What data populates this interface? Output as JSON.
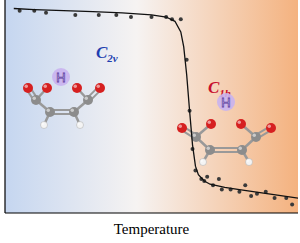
{
  "chart_data": {
    "type": "scatter",
    "x_label": "Temperature",
    "xlim": [
      0,
      100
    ],
    "ylim": [
      0,
      100
    ],
    "tick_labels": false,
    "grid": false,
    "annotations": [
      {
        "text": "C2v",
        "color": "#1f3fb0"
      },
      {
        "text": "C1h",
        "color": "#c8102e"
      },
      {
        "text": "H"
      },
      {
        "text": "H"
      }
    ],
    "series": [
      {
        "type": "scatter",
        "color": "#3a3a3a",
        "marker": "circle",
        "x": [
          5,
          10,
          14,
          24,
          32,
          38,
          43,
          50,
          55,
          57,
          60,
          62,
          63,
          64,
          65,
          67,
          68,
          69,
          71,
          73,
          74,
          77,
          80,
          82,
          84,
          86,
          89,
          92,
          96,
          98
        ],
        "values": [
          95,
          95,
          94,
          93,
          93,
          93,
          92,
          92,
          92,
          91,
          91,
          72,
          48,
          30,
          20,
          16,
          15,
          17,
          13,
          16,
          11,
          11,
          10,
          13,
          8,
          9,
          10,
          7,
          7,
          4
        ]
      },
      {
        "type": "line",
        "color": "#111111",
        "line_style": "solid",
        "x": [
          3,
          10,
          20,
          30,
          40,
          50,
          55,
          58,
          60,
          61,
          62,
          63,
          64,
          65,
          66,
          68,
          70,
          75,
          80,
          90,
          100
        ],
        "values": [
          96,
          95.5,
          95,
          94.5,
          94,
          93,
          92,
          90,
          85,
          78,
          65,
          48,
          32,
          22,
          18,
          15,
          13.5,
          12,
          11,
          9,
          7
        ]
      }
    ]
  }
}
